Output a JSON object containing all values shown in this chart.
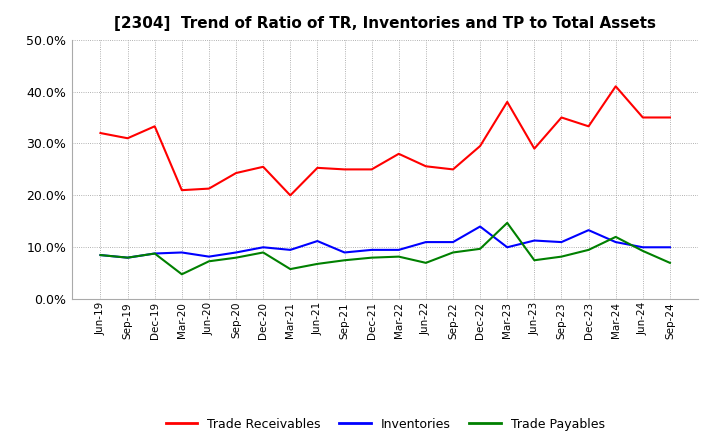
{
  "title": "[2304]  Trend of Ratio of TR, Inventories and TP to Total Assets",
  "x_labels": [
    "Jun-19",
    "Sep-19",
    "Dec-19",
    "Mar-20",
    "Jun-20",
    "Sep-20",
    "Dec-20",
    "Mar-21",
    "Jun-21",
    "Sep-21",
    "Dec-21",
    "Mar-22",
    "Jun-22",
    "Sep-22",
    "Dec-22",
    "Mar-23",
    "Jun-23",
    "Sep-23",
    "Dec-23",
    "Mar-24",
    "Jun-24",
    "Sep-24"
  ],
  "trade_receivables": [
    0.32,
    0.31,
    0.333,
    0.21,
    0.213,
    0.243,
    0.255,
    0.2,
    0.253,
    0.25,
    0.25,
    0.28,
    0.256,
    0.25,
    0.295,
    0.38,
    0.29,
    0.35,
    0.333,
    0.41,
    0.35,
    0.35
  ],
  "inventories": [
    0.085,
    0.08,
    0.088,
    0.09,
    0.082,
    0.09,
    0.1,
    0.095,
    0.112,
    0.09,
    0.095,
    0.095,
    0.11,
    0.11,
    0.14,
    0.1,
    0.113,
    0.11,
    0.133,
    0.11,
    0.1,
    0.1
  ],
  "trade_payables": [
    0.085,
    0.08,
    0.088,
    0.048,
    0.073,
    0.08,
    0.09,
    0.058,
    0.068,
    0.075,
    0.08,
    0.082,
    0.07,
    0.09,
    0.097,
    0.147,
    0.075,
    0.082,
    0.095,
    0.12,
    0.093,
    0.07
  ],
  "tr_color": "#FF0000",
  "inv_color": "#0000FF",
  "tp_color": "#008000",
  "ylim": [
    0.0,
    0.5
  ],
  "yticks": [
    0.0,
    0.1,
    0.2,
    0.3,
    0.4,
    0.5
  ],
  "bg_color": "#FFFFFF",
  "plot_bg_color": "#FFFFFF",
  "grid_color": "#999999",
  "legend_labels": [
    "Trade Receivables",
    "Inventories",
    "Trade Payables"
  ]
}
